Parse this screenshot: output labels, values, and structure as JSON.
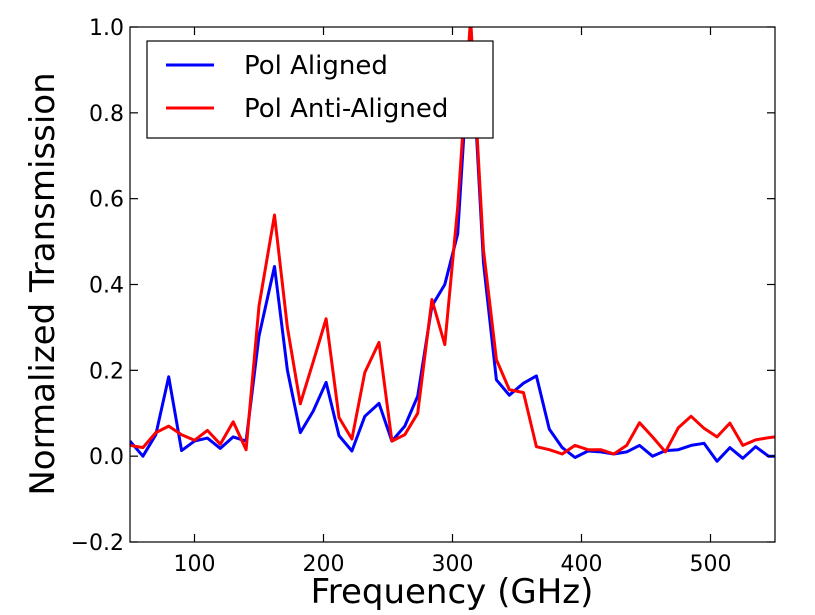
{
  "chart_data": {
    "type": "line",
    "title": "",
    "xlabel": "Frequency (GHz)",
    "ylabel": "Normalized Transmission",
    "xlim": [
      50,
      550
    ],
    "ylim": [
      -0.2,
      1.0
    ],
    "xticks": [
      100,
      200,
      300,
      400,
      500
    ],
    "xtick_labels": [
      "100",
      "200",
      "300",
      "400",
      "500"
    ],
    "yticks": [
      -0.2,
      0.0,
      0.2,
      0.4,
      0.6,
      0.8,
      1.0
    ],
    "ytick_labels": [
      "−0.2",
      "0.0",
      "0.2",
      "0.4",
      "0.6",
      "0.8",
      "1.0"
    ],
    "grid": false,
    "legend_position": "top-left",
    "series": [
      {
        "name": "Pol Aligned",
        "color": "#0000ff",
        "x": [
          50,
          60,
          70,
          80,
          90,
          100,
          110,
          120,
          130,
          140,
          150,
          162,
          172,
          182,
          192,
          202,
          212,
          222,
          232,
          243,
          253,
          263,
          273,
          284,
          294,
          304,
          314,
          324,
          334,
          344,
          355,
          365,
          375,
          385,
          395,
          405,
          415,
          425,
          435,
          445,
          455,
          465,
          475,
          485,
          495,
          505,
          515,
          525,
          535,
          545,
          550
        ],
        "values": [
          0.035,
          0.0,
          0.05,
          0.185,
          0.013,
          0.035,
          0.042,
          0.018,
          0.045,
          0.035,
          0.28,
          0.442,
          0.2,
          0.055,
          0.105,
          0.172,
          0.048,
          0.012,
          0.093,
          0.123,
          0.035,
          0.07,
          0.14,
          0.35,
          0.4,
          0.518,
          1.0,
          0.45,
          0.178,
          0.142,
          0.17,
          0.187,
          0.063,
          0.02,
          -0.003,
          0.012,
          0.01,
          0.005,
          0.01,
          0.025,
          0.0,
          0.013,
          0.015,
          0.025,
          0.03,
          -0.012,
          0.02,
          -0.005,
          0.022,
          0.0,
          0.0
        ]
      },
      {
        "name": "Pol Anti-Aligned",
        "color": "#ff0000",
        "x": [
          50,
          60,
          70,
          80,
          90,
          100,
          110,
          120,
          130,
          140,
          150,
          162,
          172,
          182,
          192,
          202,
          212,
          222,
          232,
          243,
          253,
          263,
          273,
          284,
          294,
          304,
          314,
          324,
          334,
          344,
          355,
          365,
          375,
          385,
          395,
          405,
          415,
          425,
          435,
          445,
          455,
          465,
          475,
          485,
          495,
          505,
          515,
          525,
          535,
          545,
          550
        ],
        "values": [
          0.025,
          0.02,
          0.055,
          0.07,
          0.05,
          0.037,
          0.06,
          0.028,
          0.08,
          0.015,
          0.35,
          0.562,
          0.3,
          0.122,
          0.22,
          0.32,
          0.09,
          0.04,
          0.195,
          0.265,
          0.035,
          0.05,
          0.1,
          0.365,
          0.26,
          0.58,
          1.02,
          0.48,
          0.225,
          0.155,
          0.148,
          0.022,
          0.015,
          0.005,
          0.025,
          0.015,
          0.015,
          0.005,
          0.025,
          0.078,
          0.045,
          0.01,
          0.066,
          0.093,
          0.065,
          0.045,
          0.077,
          0.025,
          0.038,
          0.043,
          0.045
        ]
      }
    ]
  }
}
